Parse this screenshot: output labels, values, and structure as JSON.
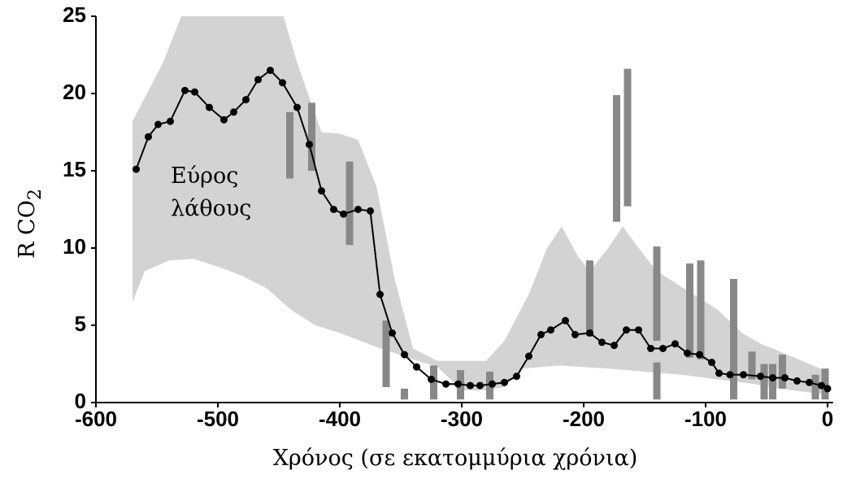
{
  "chart_data": {
    "type": "line",
    "xlabel": "Χρόνος (σε εκατομμύρια χρόνια)",
    "ylabel": "R CO",
    "ylabel_subscript": "2",
    "annotation": [
      "Εύρος",
      "λάθους"
    ],
    "xlim": [
      -600,
      0
    ],
    "ylim": [
      0,
      25
    ],
    "xticks": [
      -600,
      -500,
      -400,
      -300,
      -200,
      -100,
      0
    ],
    "yticks": [
      0,
      5,
      10,
      15,
      20,
      25
    ],
    "series": [
      {
        "color": "#000000",
        "x": [
          -567,
          -557,
          -549,
          -539,
          -527,
          -519,
          -507,
          -495,
          -487,
          -477,
          -467,
          -457,
          -447,
          -435,
          -425,
          -415,
          -405,
          -397,
          -385,
          -375,
          -367,
          -357,
          -347,
          -337,
          -325,
          -313,
          -303,
          -293,
          -285,
          -275,
          -265,
          -255,
          -245,
          -235,
          -227,
          -215,
          -207,
          -195,
          -185,
          -175,
          -165,
          -155,
          -145,
          -135,
          -125,
          -115,
          -105,
          -95,
          -89,
          -80,
          -69,
          -55,
          -45,
          -35,
          -25,
          -15,
          -5,
          0
        ],
        "values": [
          15.1,
          17.2,
          18.0,
          18.2,
          20.2,
          20.1,
          19.1,
          18.3,
          18.8,
          19.6,
          20.9,
          21.5,
          20.7,
          19.1,
          16.7,
          13.7,
          12.5,
          12.2,
          12.5,
          12.4,
          7.0,
          4.5,
          3.1,
          2.3,
          1.5,
          1.2,
          1.2,
          1.1,
          1.1,
          1.2,
          1.3,
          1.7,
          3.0,
          4.4,
          4.7,
          5.3,
          4.4,
          4.5,
          3.9,
          3.7,
          4.7,
          4.7,
          3.5,
          3.5,
          3.8,
          3.2,
          3.1,
          2.6,
          1.9,
          1.8,
          1.8,
          1.7,
          1.6,
          1.6,
          1.4,
          1.3,
          1.1,
          0.9
        ]
      }
    ],
    "band": {
      "color": "#d3d3d3",
      "upper": {
        "x": [
          -570,
          -545,
          -525,
          -470,
          -450,
          -435,
          -415,
          -400,
          -385,
          -370,
          -355,
          -340,
          -320,
          -300,
          -280,
          -265,
          -245,
          -230,
          -218,
          -205,
          -195,
          -180,
          -168,
          -155,
          -140,
          -110,
          -90,
          -70,
          -55,
          -45,
          -30,
          0
        ],
        "values": [
          18.2,
          22,
          26,
          26,
          26,
          22,
          17.5,
          17.4,
          17,
          14,
          8,
          3.5,
          2.7,
          2.7,
          2.7,
          4,
          7,
          10,
          11.4,
          9.5,
          8.5,
          10,
          11.4,
          10,
          8.5,
          7,
          6,
          4.5,
          3.8,
          3.5,
          3,
          2
        ]
      },
      "lower": {
        "x": [
          -570,
          -560,
          -540,
          -520,
          -500,
          -480,
          -460,
          -440,
          -420,
          -400,
          -370,
          -340,
          -320,
          -300,
          -280,
          -265,
          -250,
          -220,
          -180,
          -150,
          -120,
          -90,
          -60,
          -30,
          0
        ],
        "values": [
          6.5,
          8.5,
          9.2,
          9.3,
          8.8,
          8.2,
          7.4,
          6,
          5,
          4.5,
          3.6,
          2.8,
          2.3,
          0.8,
          0.8,
          1.0,
          2.2,
          2.4,
          2.2,
          2.0,
          1.8,
          1.5,
          1.2,
          0.8,
          0.5
        ]
      }
    },
    "ranges": {
      "color": "#888888",
      "x": [
        -441,
        -423,
        -392,
        -362,
        -347,
        -323,
        -301,
        -277,
        -195,
        -173,
        -164,
        -140,
        -140,
        -113,
        -104,
        -77,
        -62,
        -52,
        -45,
        -37,
        -10,
        -2
      ],
      "low": [
        14.5,
        15,
        10.2,
        1,
        0.2,
        0.2,
        0.2,
        0.2,
        4.3,
        11.7,
        12.7,
        4,
        0.2,
        2.9,
        2.8,
        0.2,
        1.5,
        0.2,
        0.2,
        0.9,
        0.2,
        0.2
      ],
      "high": [
        18.8,
        19.4,
        15.6,
        5.3,
        0.9,
        2.4,
        2.1,
        2,
        9.2,
        19.9,
        21.6,
        10.1,
        2.6,
        9,
        9.2,
        8,
        3.3,
        2.5,
        2.5,
        3.1,
        1.8,
        2.2
      ]
    }
  }
}
